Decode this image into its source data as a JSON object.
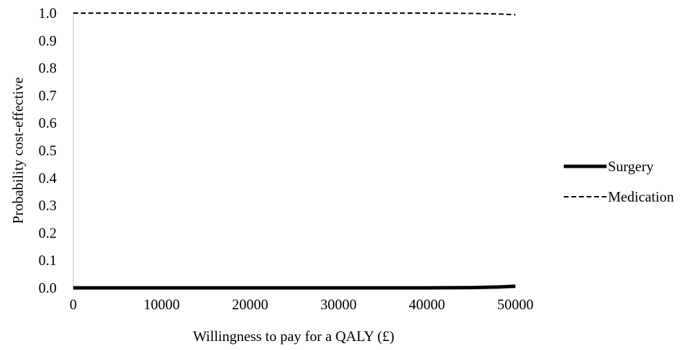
{
  "chart_data": {
    "type": "line",
    "title": "",
    "xlabel": "Willingness to pay for a QALY (£)",
    "ylabel": "Probability cost-effective",
    "xlim": [
      0,
      50000
    ],
    "ylim": [
      0,
      1.0
    ],
    "xticks": [
      0,
      10000,
      20000,
      30000,
      40000,
      50000
    ],
    "xtick_labels": [
      "0",
      "10000",
      "20000",
      "30000",
      "40000",
      "50000"
    ],
    "yticks": [
      0,
      0.1,
      0.2,
      0.3,
      0.4,
      0.5,
      0.6,
      0.7,
      0.8,
      0.9,
      1.0
    ],
    "ytick_labels": [
      "0.0",
      "0.1",
      "0.2",
      "0.3",
      "0.4",
      "0.5",
      "0.6",
      "0.7",
      "0.8",
      "0.9",
      "1.0"
    ],
    "grid": false,
    "legend_position": "right",
    "series": [
      {
        "name": "Surgery",
        "style": "solid-thick",
        "color": "#000000",
        "x": [
          0,
          10000,
          20000,
          30000,
          40000,
          45000,
          48000,
          50000
        ],
        "y": [
          0.0,
          0.0,
          0.0,
          0.0,
          0.0,
          0.001,
          0.003,
          0.006
        ]
      },
      {
        "name": "Medication",
        "style": "dashed",
        "color": "#000000",
        "x": [
          0,
          10000,
          20000,
          30000,
          40000,
          45000,
          48000,
          50000
        ],
        "y": [
          1.0,
          1.0,
          1.0,
          1.0,
          1.0,
          0.999,
          0.997,
          0.994
        ]
      }
    ]
  }
}
